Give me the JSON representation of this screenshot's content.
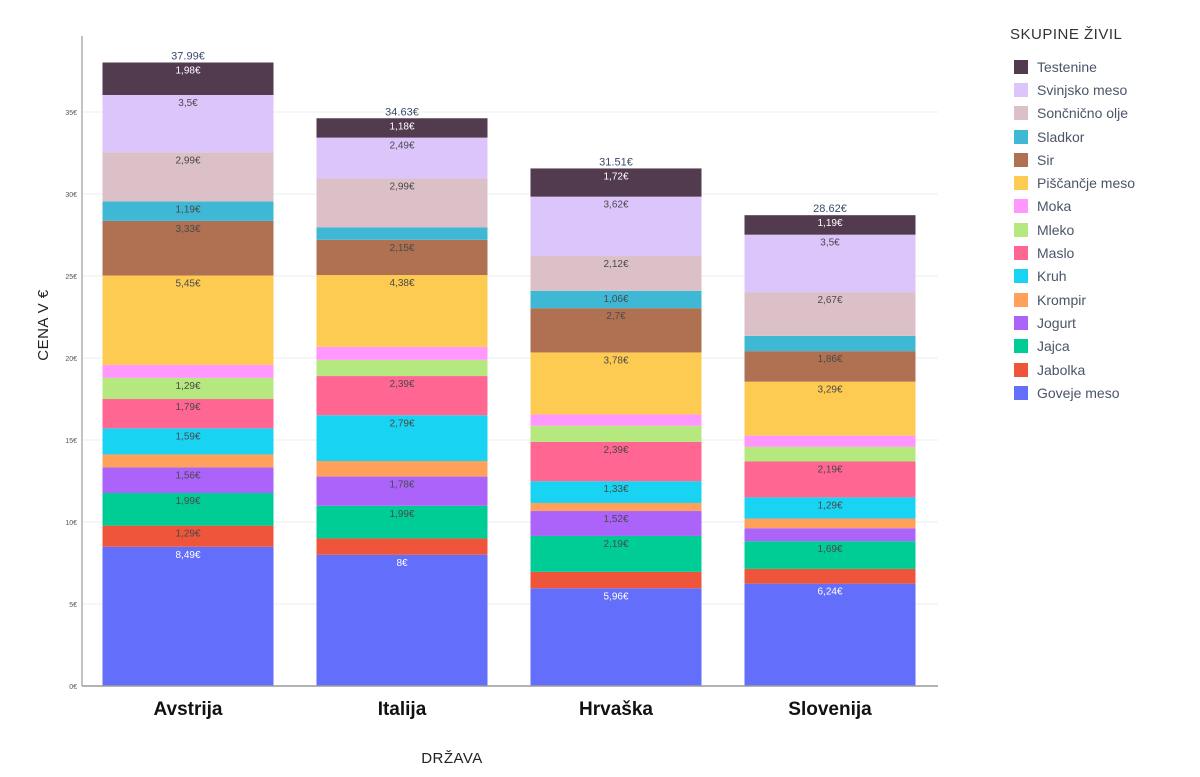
{
  "chart_data": {
    "type": "bar",
    "stacked": true,
    "xlabel": "DRŽAVA",
    "ylabel": "CENA V €",
    "ylim": [
      0,
      40
    ],
    "yticks": [
      0,
      5,
      10,
      15,
      20,
      25,
      30,
      35
    ],
    "ytick_labels": [
      "0€",
      "5€",
      "10€",
      "15€",
      "20€",
      "25€",
      "30€",
      "35€"
    ],
    "categories": [
      "Avstrija",
      "Italija",
      "Hrvaška",
      "Slovenija"
    ],
    "totals": [
      "37.99€",
      "34.63€",
      "31.51€",
      "28.62€"
    ],
    "legend_title": "SKUPINE ŽIVIL",
    "legend_position": "right",
    "series": [
      {
        "name": "Goveje meso",
        "color": "#636efa",
        "values": [
          8.49,
          8,
          5.96,
          6.24
        ],
        "labels": [
          "8,49€",
          "8€",
          "5,96€",
          "6,24€"
        ]
      },
      {
        "name": "Jabolka",
        "color": "#ef553b",
        "values": [
          1.29,
          1.0,
          1.0,
          0.9
        ],
        "labels": [
          "1,29€",
          "",
          "",
          ""
        ]
      },
      {
        "name": "Jajca",
        "color": "#00cc96",
        "values": [
          1.99,
          1.99,
          2.19,
          1.69
        ],
        "labels": [
          "1,99€",
          "1,99€",
          "2,19€",
          "1,69€"
        ]
      },
      {
        "name": "Jogurt",
        "color": "#ab63fa",
        "values": [
          1.56,
          1.78,
          1.52,
          0.79
        ],
        "labels": [
          "1,56€",
          "1,78€",
          "1,52€",
          ""
        ]
      },
      {
        "name": "Krompir",
        "color": "#ffa15a",
        "values": [
          0.79,
          0.95,
          0.49,
          0.59
        ],
        "labels": [
          "",
          "",
          "",
          ""
        ]
      },
      {
        "name": "Kruh",
        "color": "#19d3f3",
        "values": [
          1.59,
          2.79,
          1.33,
          1.29
        ],
        "labels": [
          "1,59€",
          "2,79€",
          "1,33€",
          "1,29€"
        ]
      },
      {
        "name": "Maslo",
        "color": "#ff6692",
        "values": [
          1.79,
          2.39,
          2.39,
          2.19
        ],
        "labels": [
          "1,79€",
          "2,39€",
          "2,39€",
          "2,19€"
        ]
      },
      {
        "name": "Mleko",
        "color": "#b6e880",
        "values": [
          1.29,
          0.99,
          0.99,
          0.89
        ],
        "labels": [
          "1,29€",
          "",
          "",
          ""
        ]
      },
      {
        "name": "Moka",
        "color": "#ff97ff",
        "values": [
          0.79,
          0.79,
          0.69,
          0.69
        ],
        "labels": [
          "",
          "",
          "",
          ""
        ]
      },
      {
        "name": "Piščančje meso",
        "color": "#fecb52",
        "values": [
          5.45,
          4.38,
          3.78,
          3.29
        ],
        "labels": [
          "5,45€",
          "4,38€",
          "3,78€",
          "3,29€"
        ]
      },
      {
        "name": "Sir",
        "color": "#b07152",
        "values": [
          3.33,
          2.15,
          2.7,
          1.86
        ],
        "labels": [
          "3,33€",
          "2,15€",
          "2,7€",
          "1,86€"
        ]
      },
      {
        "name": "Sladkor",
        "color": "#3fb8d6",
        "values": [
          1.19,
          0.75,
          1.06,
          0.93
        ],
        "labels": [
          "1,19€",
          "",
          "1,06€",
          ""
        ]
      },
      {
        "name": "Sončnično olje",
        "color": "#dcc0c8",
        "values": [
          2.99,
          2.99,
          2.12,
          2.67
        ],
        "labels": [
          "2,99€",
          "2,99€",
          "2,12€",
          "2,67€"
        ]
      },
      {
        "name": "Svinjsko meso",
        "color": "#dcc5fb",
        "values": [
          3.5,
          2.49,
          3.62,
          3.5
        ],
        "labels": [
          "3,5€",
          "2,49€",
          "3,62€",
          "3,5€"
        ]
      },
      {
        "name": "Testenine",
        "color": "#523b4f",
        "values": [
          1.98,
          1.18,
          1.72,
          1.19
        ],
        "labels": [
          "1,98€",
          "1,18€",
          "1,72€",
          "1,19€"
        ]
      }
    ]
  }
}
